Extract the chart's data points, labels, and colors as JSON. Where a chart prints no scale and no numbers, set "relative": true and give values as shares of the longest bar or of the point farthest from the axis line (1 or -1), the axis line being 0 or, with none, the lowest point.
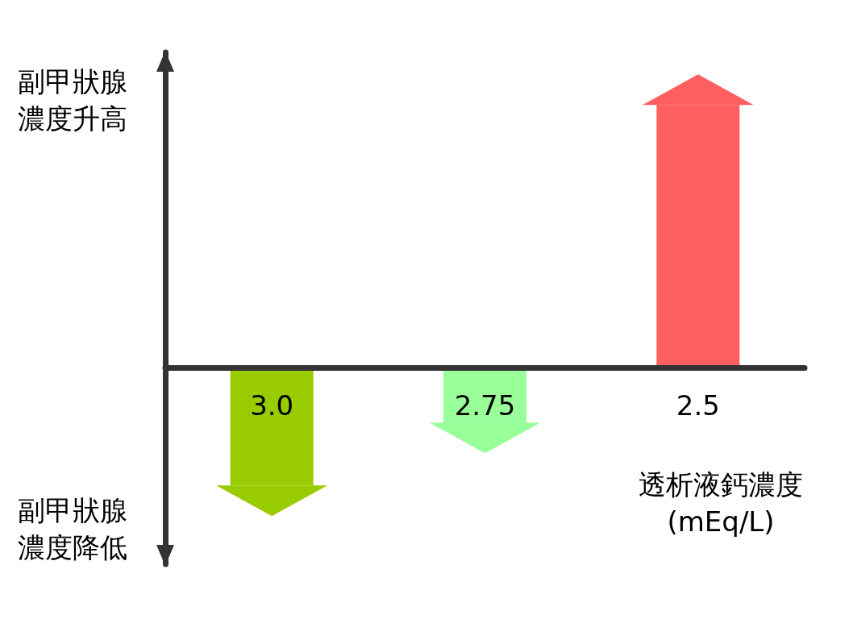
{
  "chart_data": {
    "type": "bar",
    "relative": true,
    "categories": [
      "3.0",
      "2.75",
      "2.5"
    ],
    "values": [
      -0.45,
      -0.21,
      1
    ],
    "colors": [
      "#99cc00",
      "#99ff99",
      "#ff5f5f"
    ],
    "xlabel": "透析液鈣濃度\n(mEq/L)",
    "annotations": [
      "副甲狀腺濃度升高",
      "副甲狀腺濃度降低"
    ],
    "grid": false
  }
}
